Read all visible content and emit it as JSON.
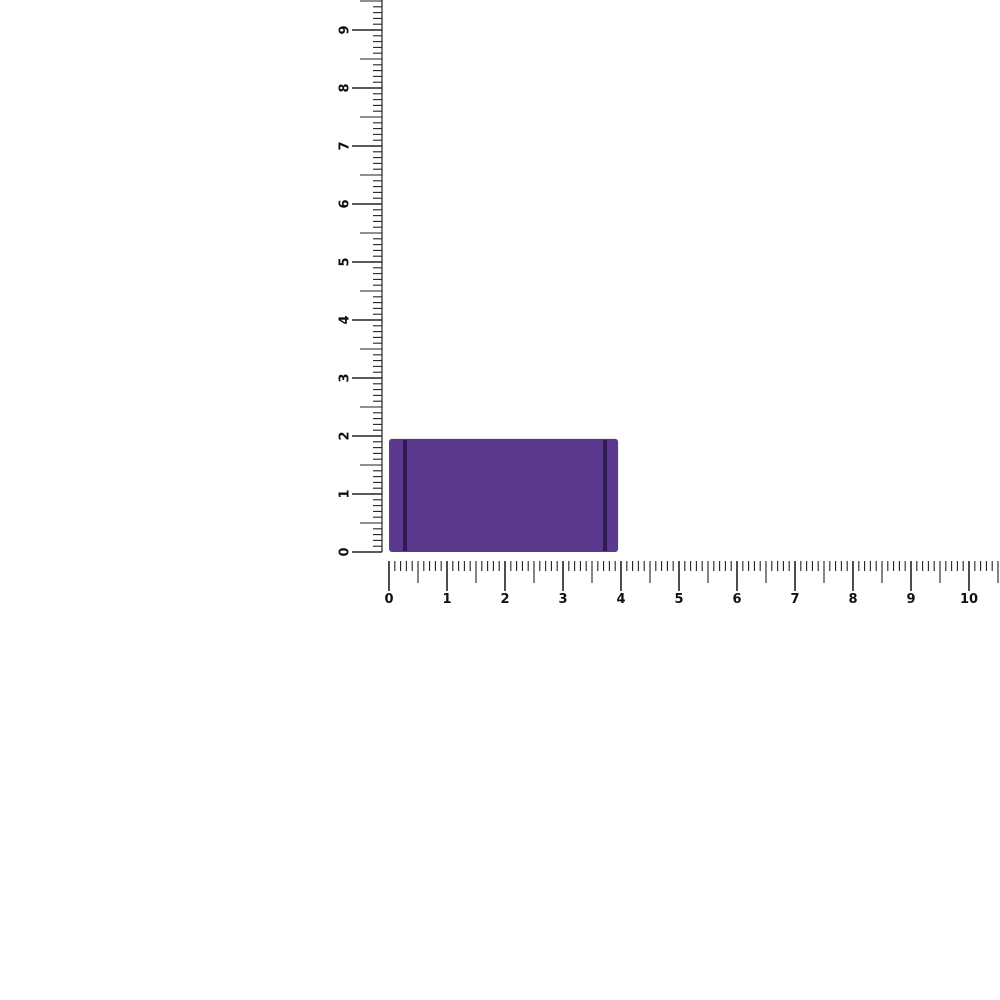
{
  "rulers": {
    "x_labels": [
      "0",
      "1",
      "2",
      "3",
      "4",
      "5",
      "6",
      "7",
      "8",
      "9",
      "10"
    ],
    "y_labels": [
      "0",
      "1",
      "2",
      "3",
      "4",
      "5",
      "6",
      "7",
      "8",
      "9"
    ],
    "minor_step": 0.1
  },
  "object": {
    "name": "purple block",
    "width_units": 3.95,
    "height_units": 1.95,
    "color": "#5b3a8e",
    "groove_color": "#2e1c55"
  }
}
